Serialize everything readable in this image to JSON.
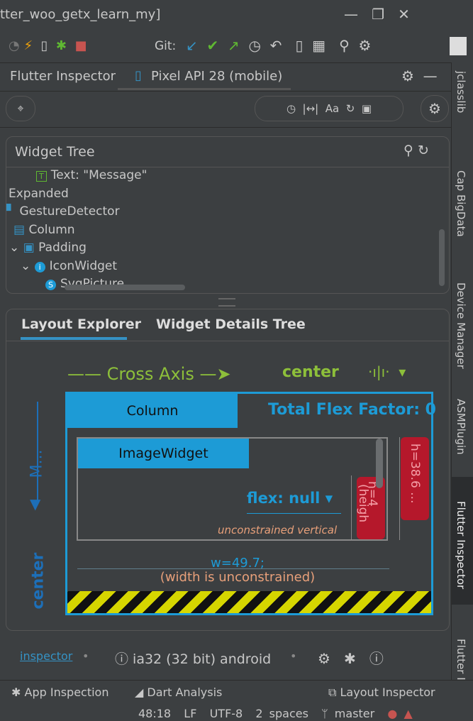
{
  "window": {
    "title": "tter_woo_getx_learn_my]",
    "git_label": "Git:"
  },
  "inspector": {
    "tab": "Flutter Inspector",
    "device": "Pixel API 28 (mobile)"
  },
  "widget_tree": {
    "title": "Widget Tree",
    "items": [
      {
        "icon": "T",
        "label": "Text: \"Message\""
      },
      {
        "label": "Expanded"
      },
      {
        "label": "GestureDetector"
      },
      {
        "label": "Column"
      },
      {
        "label": "Padding"
      },
      {
        "icon": "i",
        "label": "IconWidget"
      },
      {
        "icon": "S",
        "label": "SvgPicture"
      }
    ]
  },
  "layout_explorer": {
    "tabs": [
      "Layout Explorer",
      "Widget Details Tree"
    ],
    "cross_axis": "Cross Axis",
    "cross_alignment": "center",
    "main_axis": "M...",
    "main_alignment": "center",
    "column": "Column",
    "total_flex": "Total Flex Factor: 0",
    "child": "ImageWidget",
    "flex": "flex: null",
    "unconstrained": "unconstrained vertical",
    "height_outer": "h=38.6 ...",
    "height_inner": "h=4",
    "height_inner_note": "(heigh",
    "width": "w=49.7;",
    "width_note": "(width is unconstrained)"
  },
  "footer": {
    "link": "inspector",
    "platform": "ia32 (32 bit) android"
  },
  "tool_windows": [
    "App Inspection",
    "Dart Analysis",
    "Layout Inspector"
  ],
  "status": [
    "48:18",
    "LF",
    "UTF-8",
    "2 spaces",
    "master"
  ],
  "sidebar": [
    "jclasslib",
    "Cap BigData",
    "Device Manager",
    "ASMPlugin",
    "Flutter Inspector",
    "Flutter I"
  ]
}
